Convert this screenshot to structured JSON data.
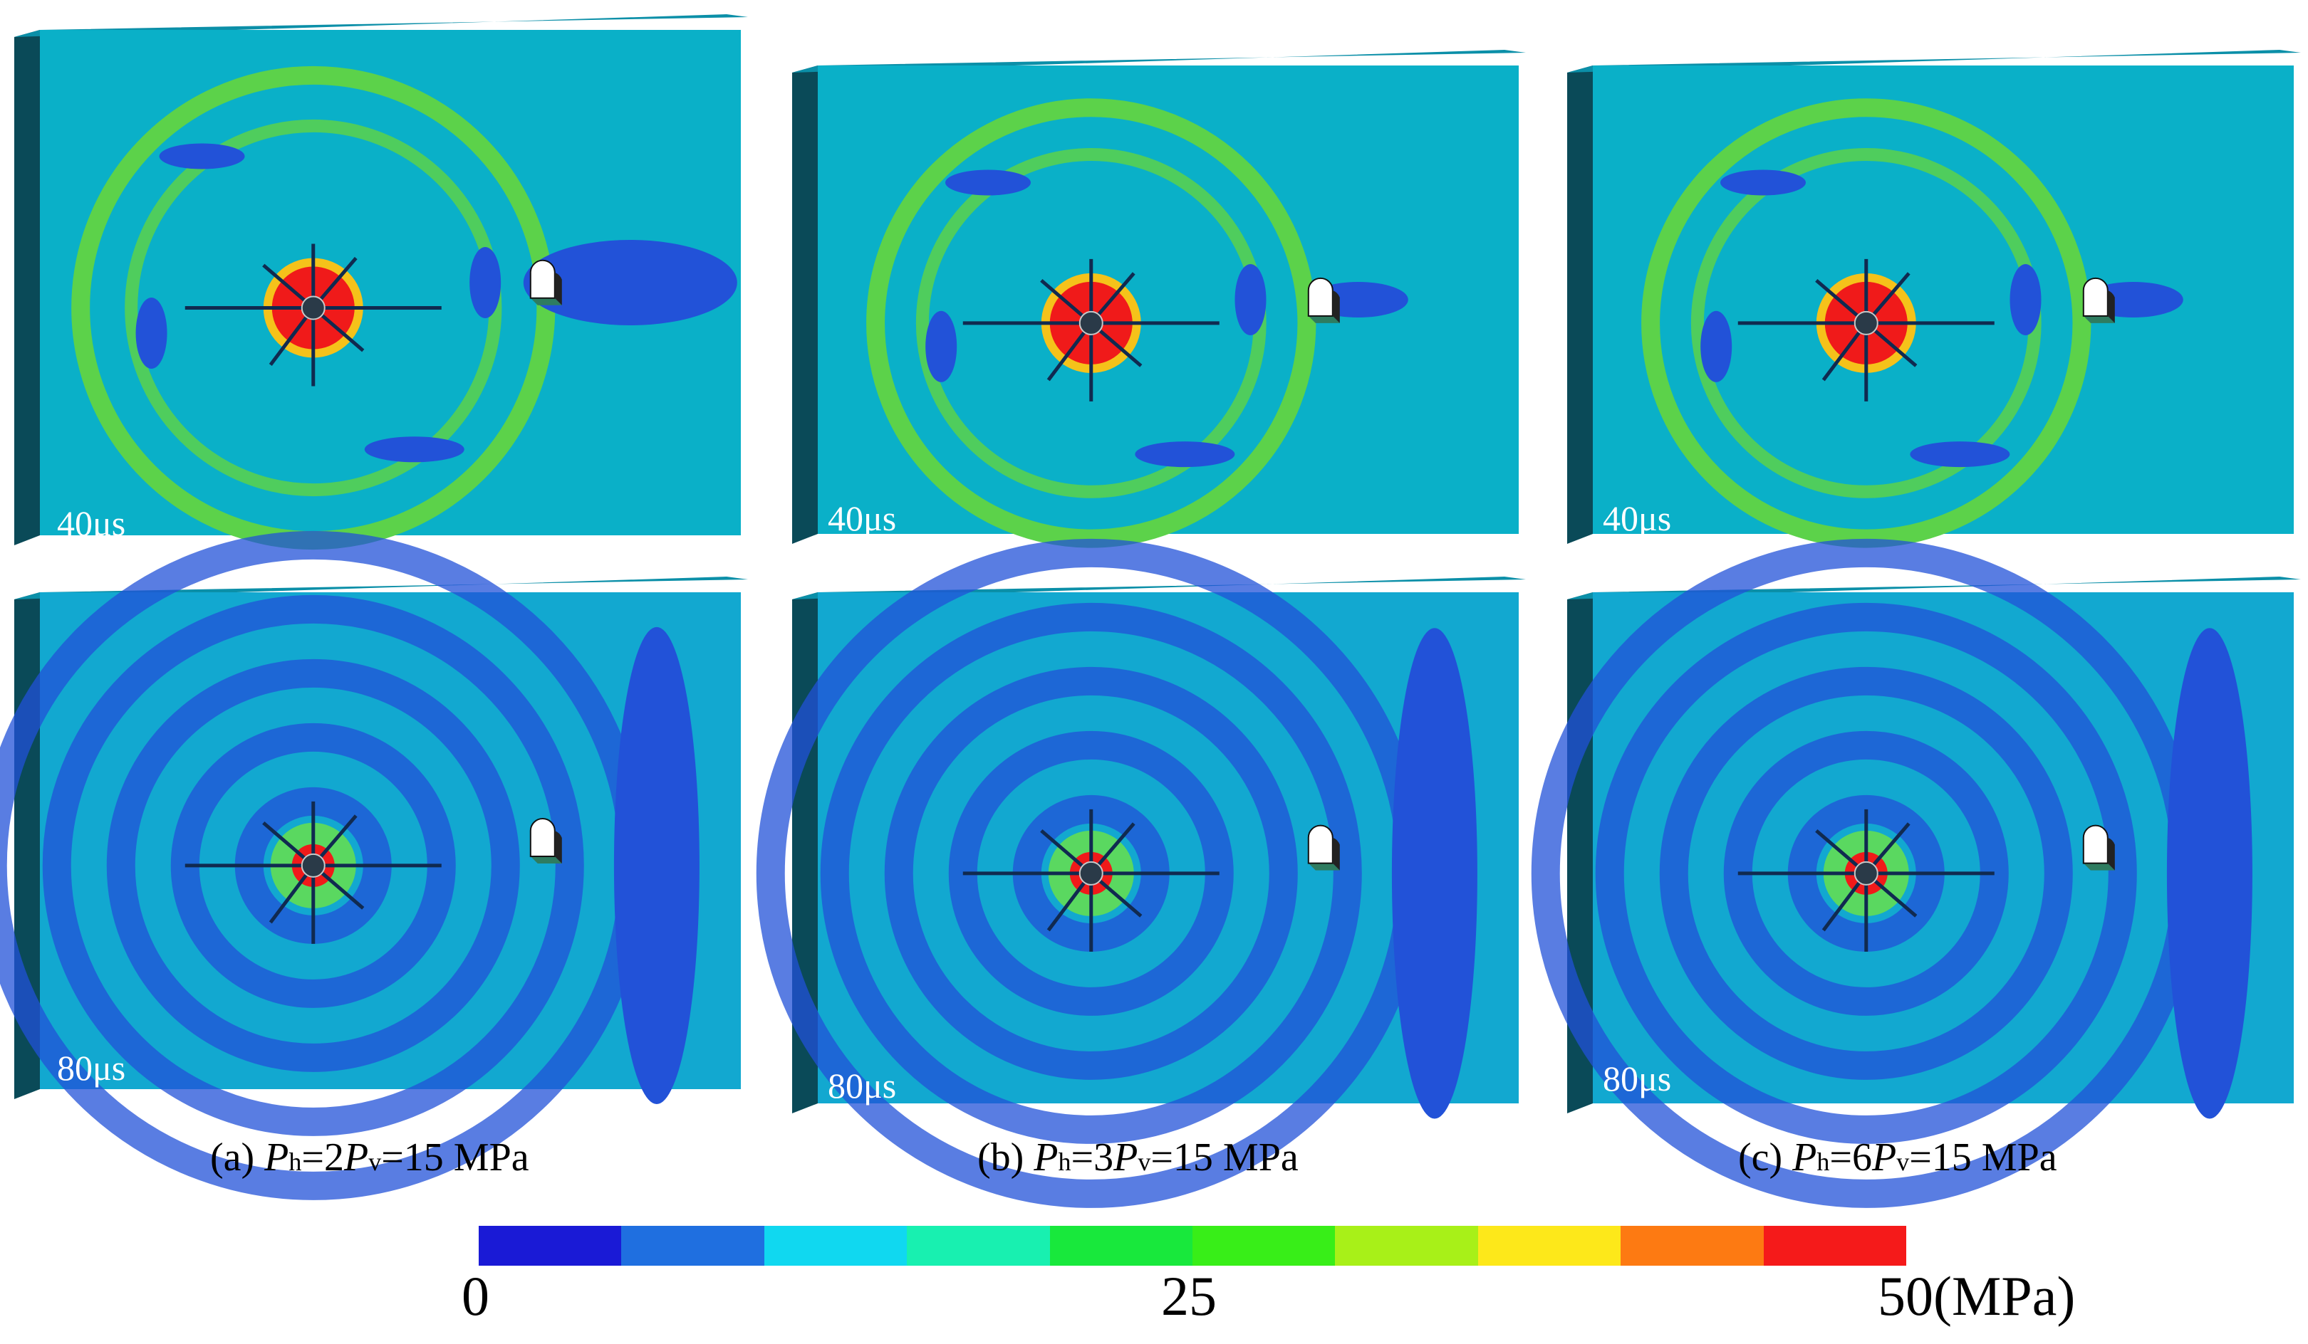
{
  "panels": [
    {
      "column": "a",
      "row": 1,
      "time": "40μs"
    },
    {
      "column": "b",
      "row": 1,
      "time": "40μs"
    },
    {
      "column": "c",
      "row": 1,
      "time": "40μs"
    },
    {
      "column": "a",
      "row": 2,
      "time": "80μs"
    },
    {
      "column": "b",
      "row": 2,
      "time": "80μs"
    },
    {
      "column": "c",
      "row": 2,
      "time": "80μs"
    }
  ],
  "captions": [
    {
      "prefix": "(a) ",
      "ph": "P",
      "ph_sub": "h",
      "mid": "=2",
      "pv": "P",
      "pv_sub": "v",
      "suffix": "=15 MPa"
    },
    {
      "prefix": "(b) ",
      "ph": "P",
      "ph_sub": "h",
      "mid": "=3",
      "pv": "P",
      "pv_sub": "v",
      "suffix": "=15 MPa"
    },
    {
      "prefix": "(c) ",
      "ph": "P",
      "ph_sub": "h",
      "mid": "=6",
      "pv": "P",
      "pv_sub": "v",
      "suffix": "=15 MPa"
    }
  ],
  "colorbar": {
    "colors": [
      "#1a1ad6",
      "#1f6fe0",
      "#10d8f0",
      "#18f0b0",
      "#18e83c",
      "#38ee18",
      "#a8f018",
      "#fde81a",
      "#fd7a12",
      "#f51a1a"
    ],
    "ticks": [
      "0",
      "25",
      "50(MPa)"
    ],
    "min": 0,
    "mid": 25,
    "max": 50
  },
  "colors": {
    "block_face_40": "#0ab0c8",
    "block_side": "#0a4a58",
    "block_top": "#0b8fa8",
    "face_80": "#12a8d0",
    "wave_green": "#5cd24a",
    "low_blue": "#2252d8",
    "hot_red": "#f01a1a"
  }
}
